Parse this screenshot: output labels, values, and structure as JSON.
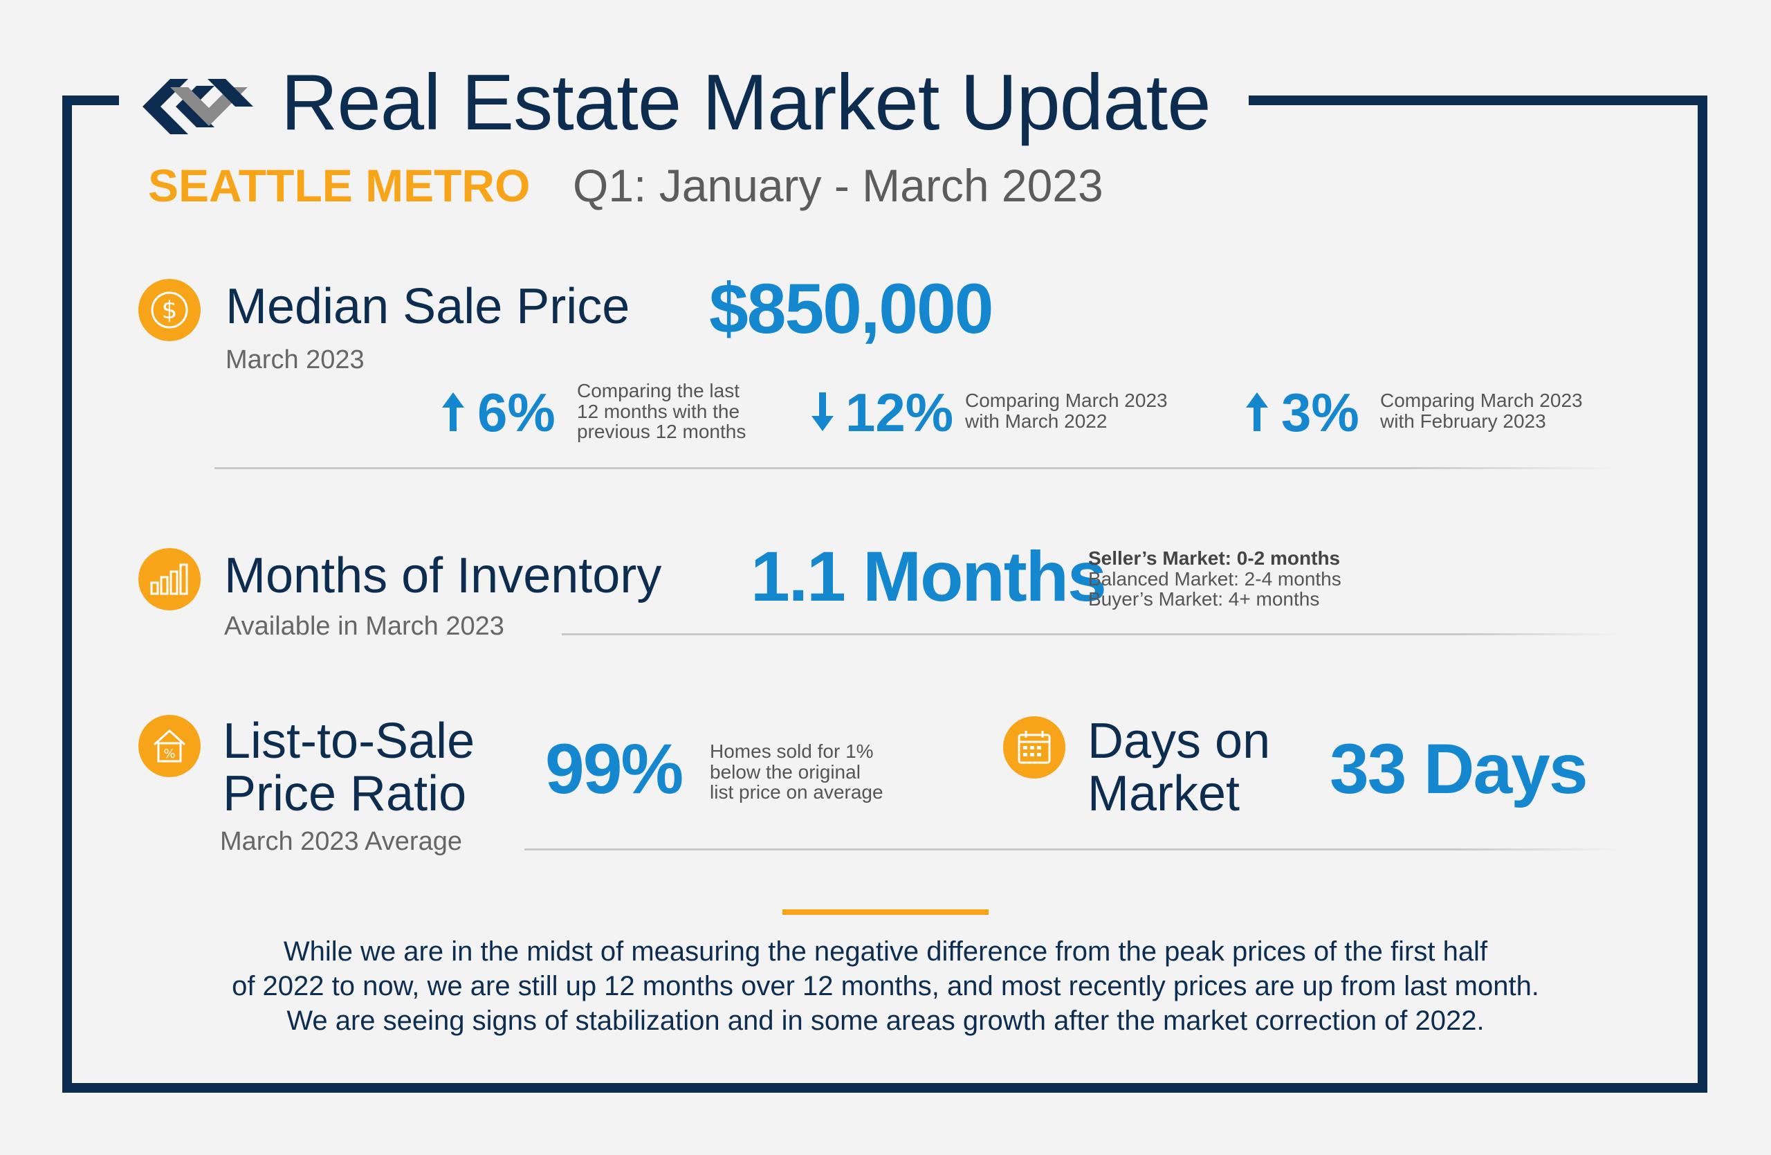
{
  "header": {
    "title": "Real Estate Market Update",
    "region": "SEATTLE METRO",
    "period": "Q1: January - March 2023"
  },
  "median_sale_price": {
    "icon": "dollar-icon",
    "label": "Median Sale Price",
    "sublabel": "March 2023",
    "value": "$850,000",
    "comparisons": [
      {
        "direction": "up",
        "value": "6%",
        "note_lines": [
          "Comparing the last",
          "12 months with the",
          "previous 12 months"
        ]
      },
      {
        "direction": "down",
        "value": "12%",
        "note_lines": [
          "Comparing March 2023",
          "with March 2022"
        ]
      },
      {
        "direction": "up",
        "value": "3%",
        "note_lines": [
          "Comparing March 2023",
          "with February 2023"
        ]
      }
    ]
  },
  "months_of_inventory": {
    "icon": "bar-chart-icon",
    "label": "Months of Inventory",
    "sublabel": "Available in March 2023",
    "value": "1.1 Months",
    "legend": [
      "Seller’s Market: 0-2 months",
      "Balanced Market: 2-4 months",
      "Buyer’s Market: 4+ months"
    ]
  },
  "list_to_sale": {
    "icon": "house-percent-icon",
    "label_lines": [
      "List-to-Sale",
      "Price Ratio"
    ],
    "sublabel": "March 2023 Average",
    "value": "99%",
    "note_lines": [
      "Homes sold for 1%",
      "below the original",
      "list price on average"
    ]
  },
  "days_on_market": {
    "icon": "calendar-icon",
    "label_lines": [
      "Days on",
      "Market"
    ],
    "value": "33 Days"
  },
  "summary": {
    "lines": [
      "While we are in the midst of measuring the negative difference from the peak prices of the first half",
      "of 2022 to now, we are still up 12 months over 12 months, and most recently prices are up from last month.",
      "We are seeing signs of stabilization and in some areas growth after the market correction of 2022."
    ]
  },
  "colors": {
    "navy": "#0c2d4f",
    "orange": "#f7a419",
    "blue": "#1487cf",
    "gray": "#5c5c5c"
  }
}
